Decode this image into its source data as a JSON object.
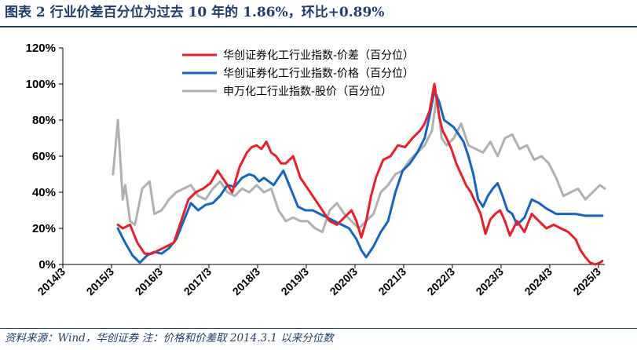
{
  "header": {
    "title": "图表 2   行业价差百分位为过去 10 年的 1.86%，环比+0.89%"
  },
  "footer": {
    "source": "资料来源：Wind，华创证券    注：价格和价差取 2014.3.1 以来分位数"
  },
  "colors": {
    "title": "#1f3e6e",
    "spread": "#e8202a",
    "price": "#1565c0",
    "stock": "#b0b0b0"
  },
  "chart_data": {
    "type": "line",
    "title": "",
    "xlabel": "",
    "ylabel": "",
    "x_ticks": [
      "2014/3",
      "2015/3",
      "2016/3",
      "2017/3",
      "2018/3",
      "2019/3",
      "2020/3",
      "2021/3",
      "2022/3",
      "2023/3",
      "2024/3",
      "2025/3"
    ],
    "y_ticks": [
      "0%",
      "20%",
      "40%",
      "60%",
      "80%",
      "100%",
      "120%"
    ],
    "ylim": [
      0,
      120
    ],
    "xlim": [
      2014.17,
      2025.3
    ],
    "grid": false,
    "legend_position": "top-center",
    "series": [
      {
        "name": "华创证券化工行业指数-价差（百分位）",
        "color": "#e8202a",
        "x": [
          2015.3,
          2015.4,
          2015.55,
          2015.7,
          2015.85,
          2016.0,
          2016.15,
          2016.3,
          2016.45,
          2016.6,
          2016.75,
          2016.9,
          2017.05,
          2017.2,
          2017.35,
          2017.5,
          2017.65,
          2017.8,
          2017.95,
          2018.05,
          2018.15,
          2018.25,
          2018.35,
          2018.45,
          2018.55,
          2018.65,
          2018.75,
          2018.9,
          2019.05,
          2019.2,
          2019.35,
          2019.5,
          2019.65,
          2019.8,
          2019.95,
          2020.1,
          2020.2,
          2020.3,
          2020.4,
          2020.5,
          2020.6,
          2020.75,
          2020.9,
          2021.05,
          2021.2,
          2021.35,
          2021.5,
          2021.6,
          2021.7,
          2021.8,
          2021.9,
          2021.97,
          2022.05,
          2022.15,
          2022.25,
          2022.35,
          2022.45,
          2022.55,
          2022.65,
          2022.75,
          2022.85,
          2022.95,
          2023.05,
          2023.15,
          2023.25,
          2023.35,
          2023.5,
          2023.65,
          2023.8,
          2023.95,
          2024.1,
          2024.25,
          2024.4,
          2024.55,
          2024.7,
          2024.8,
          2024.9,
          2025.0,
          2025.1,
          2025.2,
          2025.25
        ],
        "values": [
          22,
          20,
          22,
          12,
          6,
          6,
          8,
          10,
          12,
          24,
          36,
          40,
          42,
          45,
          52,
          46,
          40,
          54,
          62,
          65,
          66,
          64,
          68,
          62,
          60,
          56,
          56,
          60,
          48,
          42,
          36,
          30,
          24,
          22,
          26,
          30,
          24,
          15,
          24,
          38,
          48,
          58,
          60,
          66,
          65,
          70,
          74,
          78,
          85,
          100,
          82,
          74,
          70,
          64,
          56,
          50,
          44,
          40,
          34,
          28,
          17,
          25,
          28,
          30,
          24,
          16,
          24,
          18,
          28,
          24,
          20,
          22,
          20,
          18,
          14,
          8,
          4,
          1,
          0,
          1,
          2
        ]
      },
      {
        "name": "华创证券化工行业指数-价格（百分位）",
        "color": "#1565c0",
        "x": [
          2015.3,
          2015.45,
          2015.6,
          2015.75,
          2015.9,
          2016.05,
          2016.2,
          2016.35,
          2016.5,
          2016.65,
          2016.8,
          2016.95,
          2017.1,
          2017.25,
          2017.4,
          2017.55,
          2017.7,
          2017.85,
          2018.0,
          2018.1,
          2018.2,
          2018.3,
          2018.4,
          2018.5,
          2018.6,
          2018.7,
          2018.85,
          2019.0,
          2019.15,
          2019.3,
          2019.45,
          2019.6,
          2019.75,
          2019.9,
          2020.05,
          2020.2,
          2020.3,
          2020.4,
          2020.55,
          2020.7,
          2020.85,
          2021.0,
          2021.15,
          2021.3,
          2021.45,
          2021.6,
          2021.7,
          2021.8,
          2021.9,
          2022.0,
          2022.1,
          2022.2,
          2022.3,
          2022.4,
          2022.5,
          2022.6,
          2022.7,
          2022.8,
          2022.9,
          2023.0,
          2023.1,
          2023.2,
          2023.3,
          2023.4,
          2023.5,
          2023.65,
          2023.8,
          2023.95,
          2024.1,
          2024.3,
          2024.5,
          2024.7,
          2024.9,
          2025.1,
          2025.25
        ],
        "values": [
          20,
          12,
          5,
          1,
          5,
          7,
          6,
          9,
          14,
          24,
          34,
          30,
          33,
          34,
          38,
          44,
          43,
          48,
          50,
          49,
          46,
          48,
          46,
          44,
          48,
          52,
          42,
          32,
          30,
          30,
          28,
          26,
          24,
          22,
          20,
          14,
          8,
          4,
          10,
          18,
          24,
          40,
          52,
          56,
          62,
          70,
          82,
          96,
          90,
          80,
          78,
          76,
          72,
          68,
          60,
          50,
          36,
          32,
          38,
          42,
          45,
          38,
          30,
          28,
          22,
          26,
          36,
          34,
          31,
          28,
          28,
          28,
          27,
          27,
          27
        ]
      },
      {
        "name": "申万化工行业指数-股价（百分位）",
        "color": "#b0b0b0",
        "x": [
          2015.2,
          2015.3,
          2015.4,
          2015.45,
          2015.55,
          2015.65,
          2015.8,
          2015.95,
          2016.05,
          2016.2,
          2016.35,
          2016.5,
          2016.65,
          2016.8,
          2016.95,
          2017.1,
          2017.25,
          2017.4,
          2017.55,
          2017.7,
          2017.85,
          2018.0,
          2018.15,
          2018.3,
          2018.45,
          2018.6,
          2018.75,
          2018.9,
          2019.05,
          2019.2,
          2019.35,
          2019.5,
          2019.65,
          2019.8,
          2019.95,
          2020.1,
          2020.25,
          2020.4,
          2020.55,
          2020.7,
          2020.85,
          2021.0,
          2021.15,
          2021.3,
          2021.45,
          2021.6,
          2021.75,
          2021.85,
          2021.95,
          2022.05,
          2022.2,
          2022.35,
          2022.5,
          2022.65,
          2022.8,
          2022.95,
          2023.1,
          2023.25,
          2023.4,
          2023.55,
          2023.7,
          2023.85,
          2024.0,
          2024.15,
          2024.3,
          2024.45,
          2024.6,
          2024.75,
          2024.9,
          2025.05,
          2025.2,
          2025.3
        ],
        "values": [
          50,
          80,
          36,
          44,
          24,
          22,
          42,
          46,
          28,
          30,
          36,
          40,
          42,
          44,
          38,
          36,
          42,
          46,
          40,
          38,
          42,
          40,
          44,
          40,
          42,
          30,
          24,
          26,
          24,
          24,
          20,
          18,
          30,
          34,
          28,
          24,
          20,
          24,
          28,
          40,
          44,
          50,
          52,
          58,
          62,
          66,
          74,
          94,
          70,
          66,
          70,
          78,
          66,
          64,
          62,
          68,
          60,
          70,
          72,
          64,
          66,
          58,
          60,
          56,
          48,
          38,
          40,
          42,
          36,
          40,
          44,
          42
        ]
      }
    ]
  }
}
